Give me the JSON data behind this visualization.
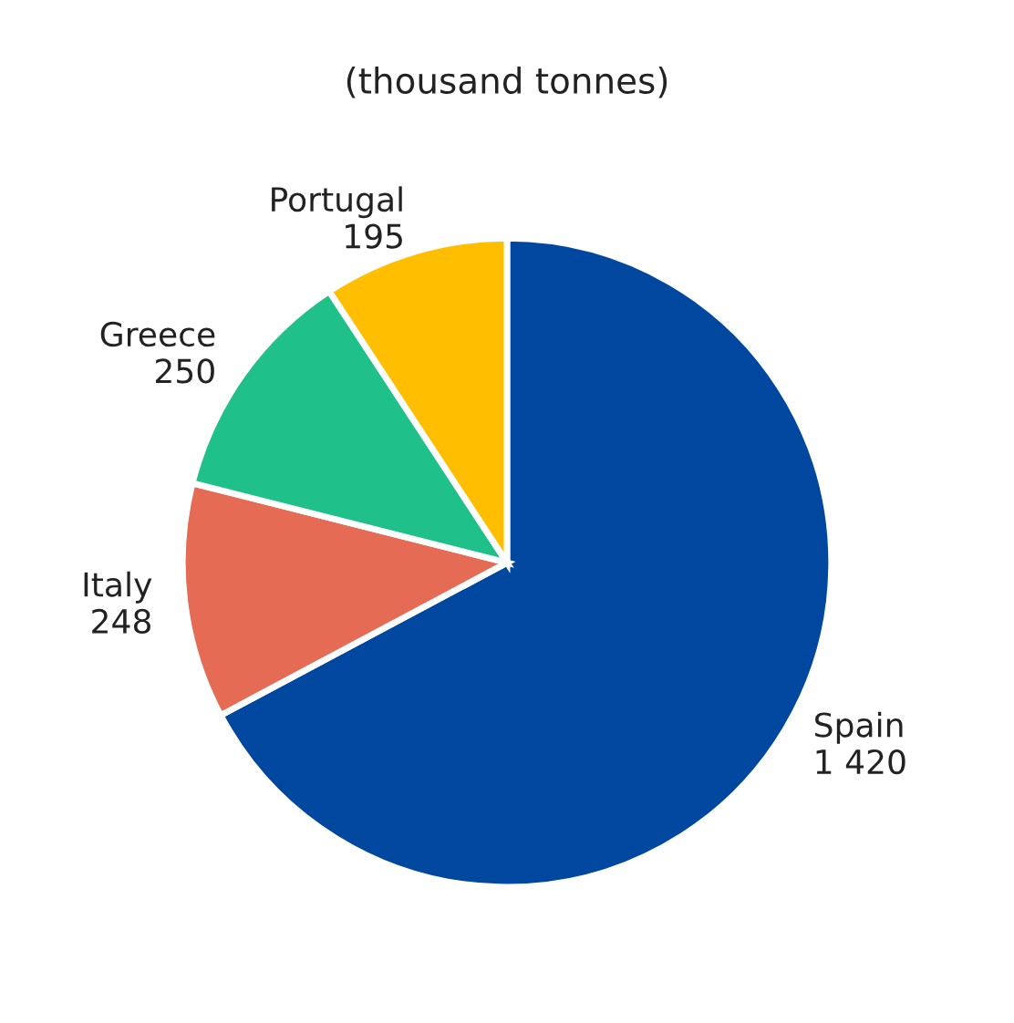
{
  "chart_data": {
    "type": "pie",
    "subtitle": "(thousand tonnes)",
    "categories": [
      "Spain",
      "Italy",
      "Greece",
      "Portugal"
    ],
    "values": [
      1420,
      248,
      250,
      195
    ],
    "value_labels": [
      "1 420",
      "248",
      "250",
      "195"
    ],
    "colors": [
      "#0047a0",
      "#e56b55",
      "#20c08a",
      "#ffbf00"
    ]
  }
}
